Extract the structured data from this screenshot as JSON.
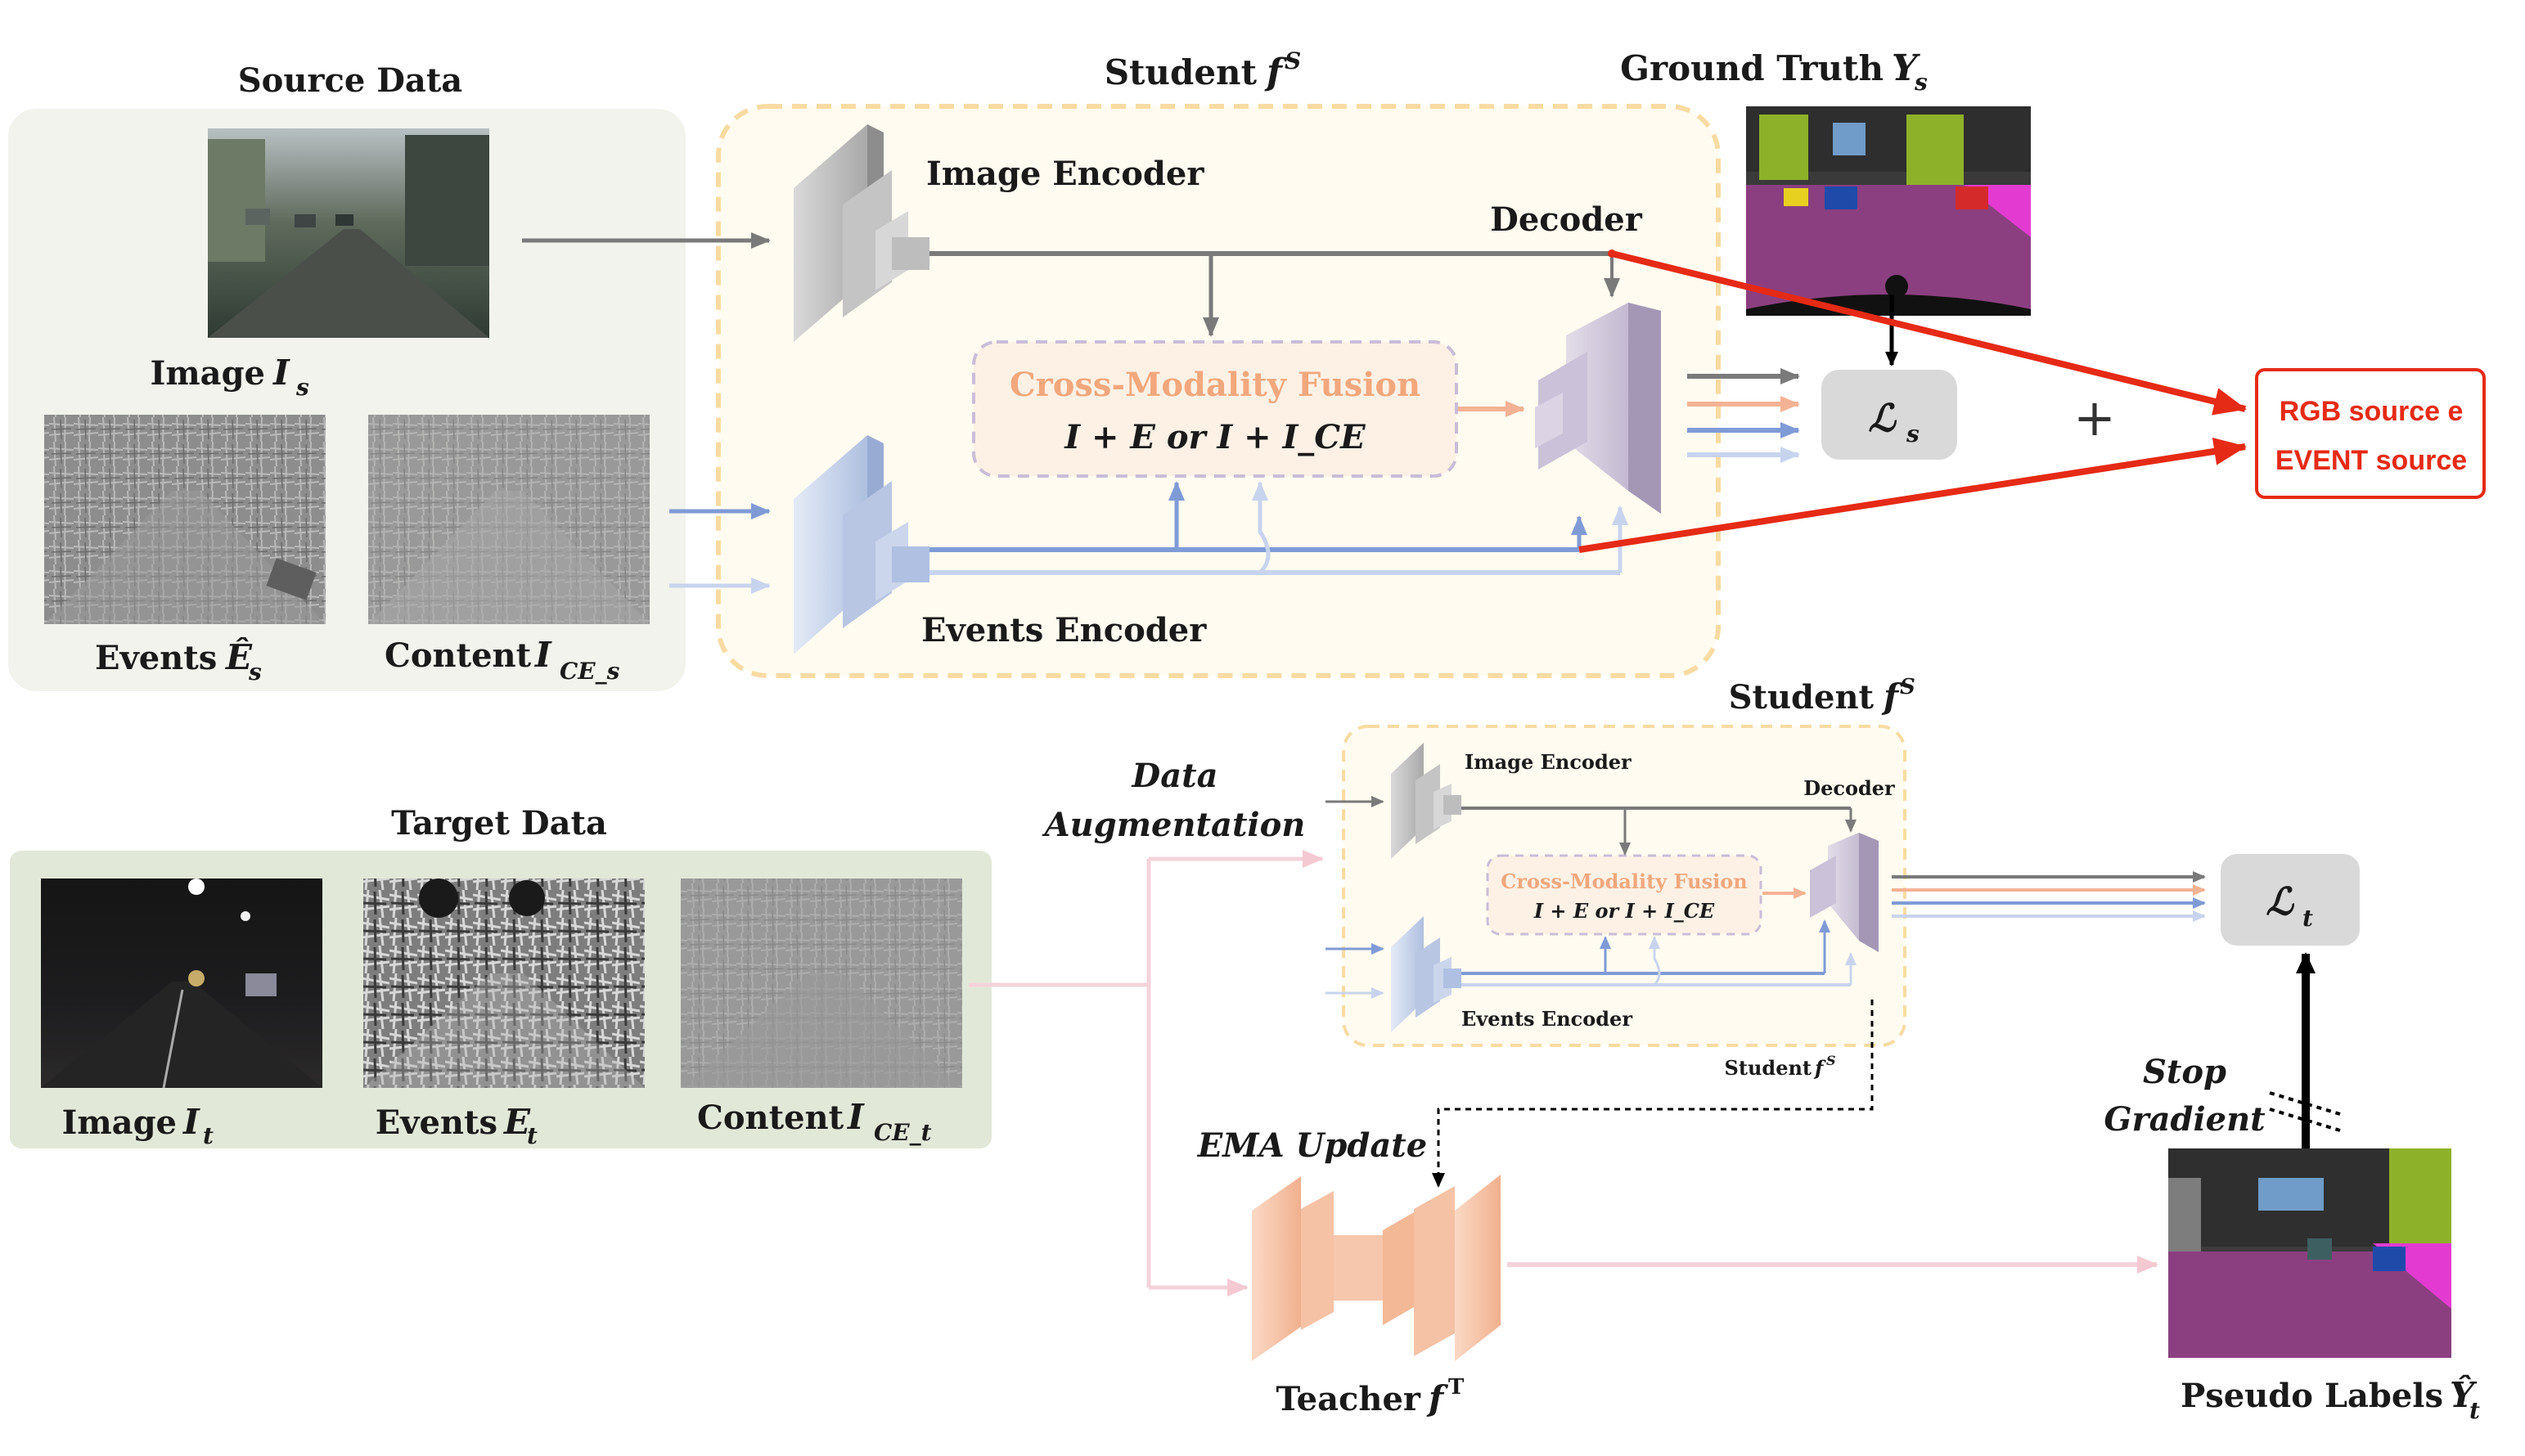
{
  "source": {
    "title": "Source Data",
    "image_label": "Image",
    "image_symbol": "I",
    "image_sub": "s",
    "events_label": "Events",
    "events_symbol": "Ê",
    "events_sub": "s",
    "content_label": "Content",
    "content_symbol": "I",
    "content_sub": "CE_s"
  },
  "student_top": {
    "title": "Student",
    "symbol": "f",
    "sup": "S",
    "image_encoder": "Image Encoder",
    "events_encoder": "Events Encoder",
    "decoder": "Decoder",
    "fusion_title": "Cross-Modality Fusion",
    "fusion_formula": "I + E or I + I_CE"
  },
  "ground_truth": {
    "label": "Ground Truth",
    "symbol": "Y",
    "sub": "s"
  },
  "loss_source": {
    "symbol": "ℒ",
    "sub": "s"
  },
  "plus": "+",
  "annotation": {
    "line1": "RGB source e",
    "line2": "EVENT source",
    "color": "#e52a15"
  },
  "target": {
    "title": "Target Data",
    "image_label": "Image",
    "image_symbol": "I",
    "image_sub": "t",
    "events_label": "Events",
    "events_symbol": "E",
    "events_sub": "t",
    "content_label": "Content",
    "content_symbol": "I",
    "content_sub": "CE_t"
  },
  "augmentation": {
    "line1": "Data",
    "line2": "Augmentation"
  },
  "student_bottom": {
    "title": "Student",
    "symbol": "f",
    "sup": "S",
    "image_encoder": "Image Encoder",
    "events_encoder": "Events Encoder",
    "decoder": "Decoder",
    "fusion_title": "Cross-Modality Fusion",
    "fusion_formula": "I + E or I + I_CE",
    "caption": "Student"
  },
  "loss_target": {
    "symbol": "ℒ",
    "sub": "t"
  },
  "ema": {
    "label": "EMA Update"
  },
  "teacher": {
    "label": "Teacher",
    "symbol": "f",
    "sup": "T"
  },
  "pseudo_labels": {
    "label": "Pseudo Labels",
    "symbol": "Ŷ",
    "sub": "t"
  },
  "stop_gradient": {
    "line1": "Stop",
    "line2": "Gradient"
  },
  "colors": {
    "student_border": "#f8dba2",
    "fusion_text": "#f3a77c",
    "image_path": "#7a7a7a",
    "events_path": "#7f9bd6",
    "content_path": "#c8d4ee",
    "target_path": "#f4d3db",
    "teacher": "#f1b08e"
  }
}
